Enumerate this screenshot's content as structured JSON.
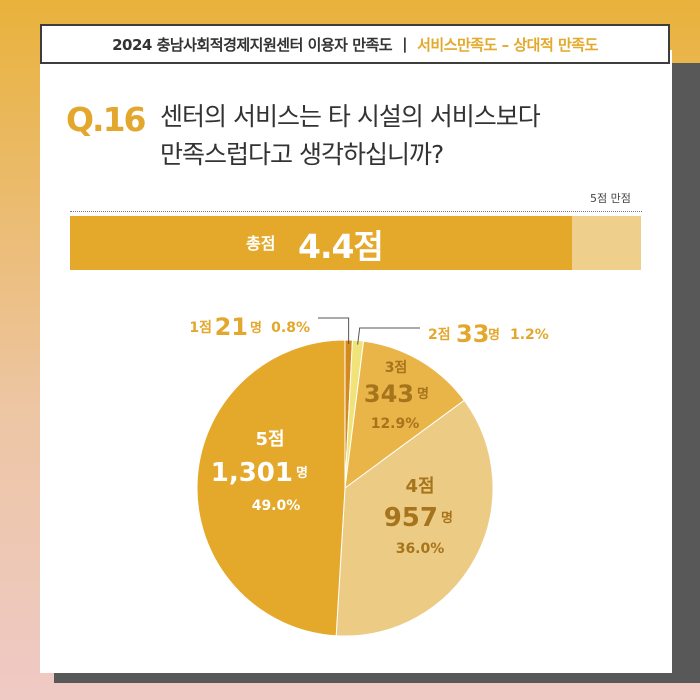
{
  "header": {
    "title": "2024 충남사회적경제지원센터 이용자 만족도",
    "separator": "|",
    "subtitle": "서비스만족도 – 상대적 만족도"
  },
  "question": {
    "number": "Q.16",
    "line1": "센터의 서비스는 타 시설의 서비스보다",
    "line2": "만족스럽다고 생각하십니까?"
  },
  "score": {
    "full_label": "5점 만점",
    "total_label": "총점",
    "total_value": "4.4점",
    "value": 4.4,
    "max": 5
  },
  "colors": {
    "c1": "#d58a1e",
    "c2": "#f0e37a",
    "c3": "#e9b548",
    "c4": "#eccb85",
    "c5": "#e4a82a"
  },
  "chart_data": {
    "type": "pie",
    "slices": [
      {
        "label": "1점",
        "count": 21,
        "count_label": "21",
        "unit": "명",
        "percent": 0.8,
        "percent_label": "0.8%"
      },
      {
        "label": "2점",
        "count": 33,
        "count_label": "33",
        "unit": "명",
        "percent": 1.2,
        "percent_label": "1.2%"
      },
      {
        "label": "3점",
        "count": 343,
        "count_label": "343",
        "unit": "명",
        "percent": 12.9,
        "percent_label": "12.9%"
      },
      {
        "label": "4점",
        "count": 957,
        "count_label": "957",
        "unit": "명",
        "percent": 36.0,
        "percent_label": "36.0%"
      },
      {
        "label": "5점",
        "count": 1301,
        "count_label": "1,301",
        "unit": "명",
        "percent": 49.0,
        "percent_label": "49.0%"
      }
    ]
  }
}
